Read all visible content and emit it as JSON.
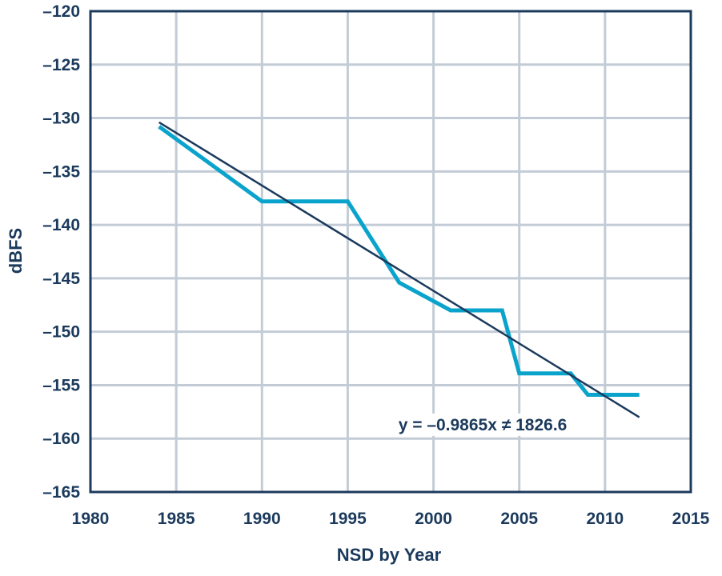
{
  "chart_data": {
    "type": "line",
    "title": "",
    "xlabel": "NSD by Year",
    "ylabel": "dBFS",
    "xlim": [
      1980,
      2015
    ],
    "ylim": [
      -165,
      -120
    ],
    "x_ticks": [
      1980,
      1985,
      1990,
      1995,
      2000,
      2005,
      2010,
      2015
    ],
    "y_ticks": [
      -120,
      -125,
      -130,
      -135,
      -140,
      -145,
      -150,
      -155,
      -160,
      -165
    ],
    "x_tick_labels": [
      "1980",
      "1985",
      "1990",
      "1995",
      "2000",
      "2005",
      "2010",
      "2015"
    ],
    "y_tick_labels": [
      "–120",
      "–125",
      "–130",
      "–135",
      "–140",
      "–145",
      "–150",
      "–155",
      "–160",
      "–165"
    ],
    "grid": true,
    "series": [
      {
        "color": "#0aa3cc",
        "x": [
          1984,
          1990,
          1995,
          1998,
          2001,
          2004,
          2005,
          2008,
          2009,
          2012
        ],
        "y": [
          -130.8,
          -137.8,
          -137.8,
          -145.4,
          -148.0,
          -148.0,
          -153.9,
          -153.9,
          -155.9,
          -155.9
        ]
      },
      {
        "color": "#1b3a5c",
        "kind": "trendline",
        "x": [
          1984,
          2012
        ],
        "y": [
          -130.4,
          -158.0
        ]
      }
    ],
    "annotations": [
      {
        "text": "y = –0.9865x ≠ 1826.6",
        "x": 1998,
        "y": -158.7
      }
    ]
  }
}
